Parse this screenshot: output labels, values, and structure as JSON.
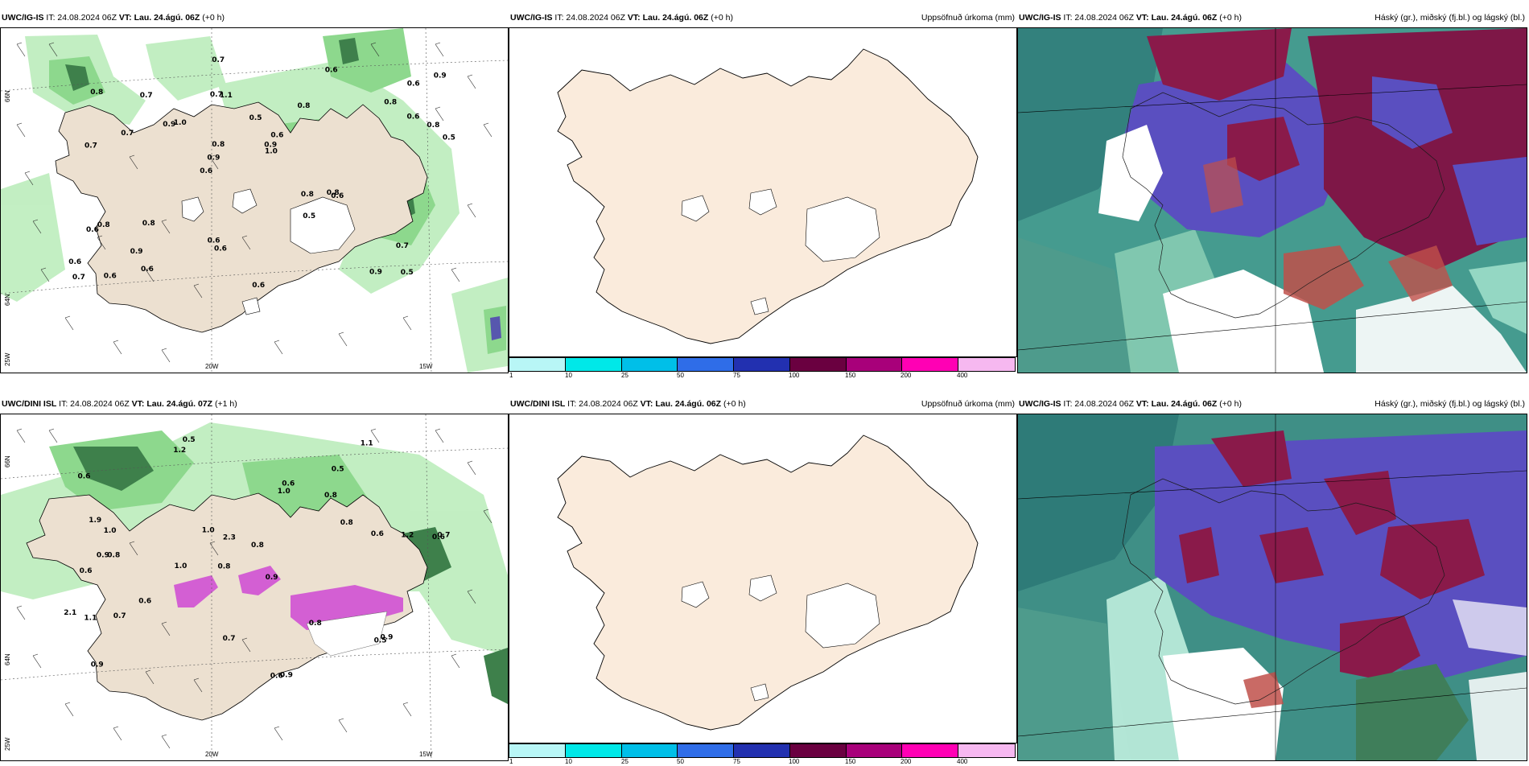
{
  "panels": {
    "top_left": {
      "model": "UWC/IG-IS",
      "it": "IT: 24.08.2024 06Z",
      "vt_label": "VT:",
      "vt_value": "Lau. 24.ágú. 06Z",
      "lead": "(+0 h)"
    },
    "top_mid": {
      "model": "UWC/IG-IS",
      "it": "IT: 24.08.2024 06Z",
      "vt_label": "VT:",
      "vt_value": "Lau. 24.ágú. 06Z",
      "lead": "(+0 h)",
      "field": "Uppsöfnuð úrkoma (mm)"
    },
    "top_right": {
      "model": "UWC/IG-IS",
      "it": "IT: 24.08.2024 06Z",
      "vt_label": "VT:",
      "vt_value": "Lau. 24.ágú. 06Z",
      "lead": "(+0 h)",
      "field": "Háský (gr.), miðský (fj.bl.) og lágský (bl.)"
    },
    "bot_left": {
      "model": "UWC/DINI ISL",
      "it": "IT: 24.08.2024 06Z",
      "vt_label": "VT:",
      "vt_value": "Lau. 24.ágú. 07Z",
      "lead": "(+1 h)"
    },
    "bot_mid": {
      "model": "UWC/DINI ISL",
      "it": "IT: 24.08.2024 06Z",
      "vt_label": "VT:",
      "vt_value": "Lau. 24.ágú. 06Z",
      "lead": "(+0 h)",
      "field": "Uppsöfnuð úrkoma (mm)"
    },
    "bot_right": {
      "model": "UWC/IG-IS",
      "it": "IT: 24.08.2024 06Z",
      "vt_label": "VT:",
      "vt_value": "Lau. 24.ágú. 06Z",
      "lead": "(+0 h)",
      "field": "Háský (gr.), miðský (fj.bl.) og lágský (bl.)"
    }
  },
  "axis": {
    "lon_20w": "20W",
    "lon_15w": "15W",
    "lat_66n": "66N",
    "lat_64n": "64N",
    "lon_25w": "25W"
  },
  "colorbar": {
    "ticks": [
      "1",
      "10",
      "25",
      "50",
      "75",
      "100",
      "150",
      "200",
      "400"
    ],
    "colors": [
      "#b8f6f6",
      "#00e8e8",
      "#00bfe8",
      "#2f6de8",
      "#2230b0",
      "#6a0040",
      "#a8007a",
      "#ff00b4",
      "#f6b8f0"
    ]
  },
  "top_left_values": [
    "0.5",
    "0.7",
    "0.6",
    "0.6",
    "0.8",
    "0.6",
    "0.7",
    "0.5",
    "0.8",
    "1.0",
    "0.6",
    "0.9",
    "1.1",
    "0.6",
    "0.6",
    "0.8",
    "0.7",
    "0.5",
    "0.8",
    "0.6",
    "0.9",
    "0.6",
    "0.8",
    "0.7",
    "0.6",
    "0.8",
    "0.9",
    "0.7",
    "0.8",
    "0.6",
    "0.9",
    "0.7",
    "0.5",
    "0.6",
    "0.8",
    "0.9",
    "0.7",
    "0.6",
    "1.0",
    "0.6",
    "0.8",
    "0.9"
  ],
  "bottom_left_values": [
    "0.5",
    "0.5",
    "0.6",
    "0.8",
    "0.9",
    "0.8",
    "0.6",
    "0.8",
    "0.6",
    "1.0",
    "0.8",
    "0.9",
    "1.2",
    "1.0",
    "0.6",
    "0.9",
    "0.7",
    "1.1",
    "0.8",
    "0.6",
    "1.0",
    "0.9",
    "0.7",
    "1.2",
    "2.1",
    "1.9",
    "2.3",
    "0.6",
    "0.9",
    "1.1",
    "0.5",
    "0.6",
    "0.7",
    "1.0",
    "0.8"
  ]
}
